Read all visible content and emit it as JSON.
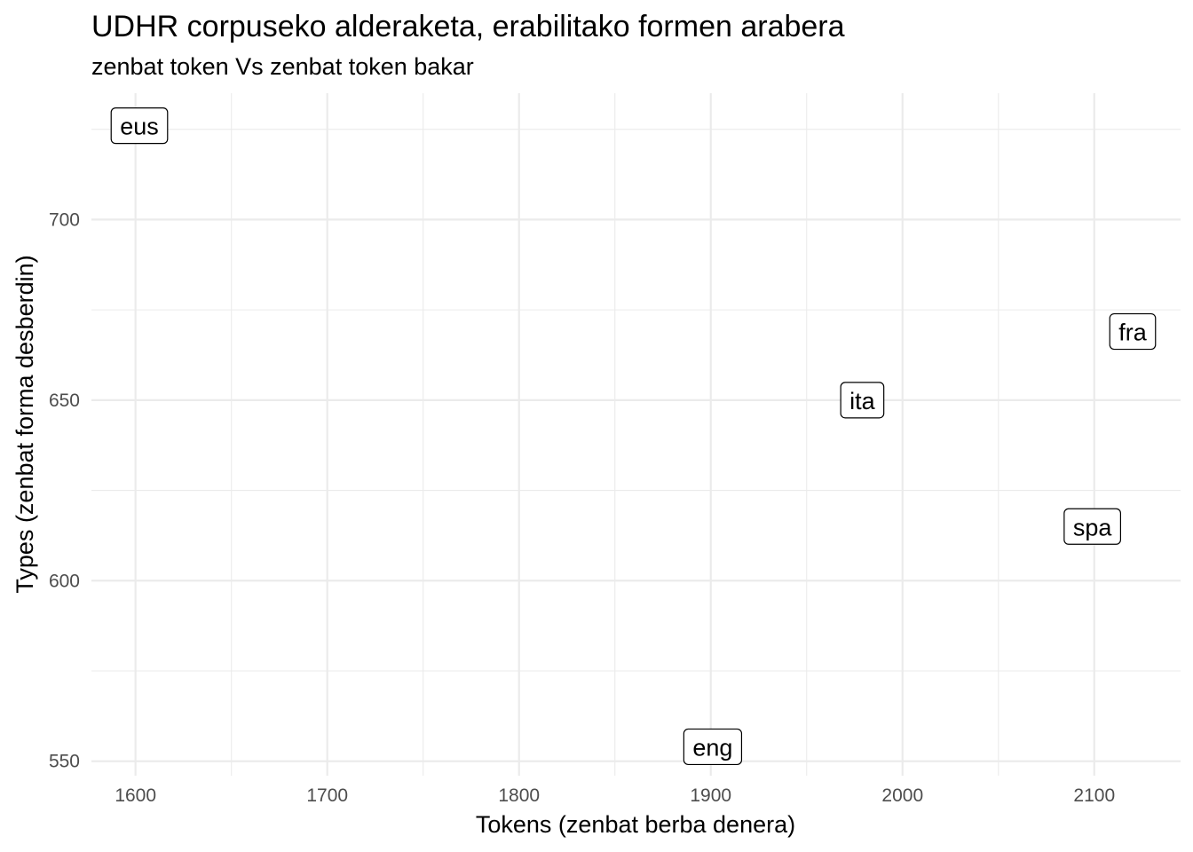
{
  "chart_data": {
    "type": "scatter",
    "title": "UDHR corpuseko alderaketa, erabilitako formen arabera",
    "subtitle": "zenbat token Vs zenbat token bakar",
    "xlabel": "Tokens (zenbat berba denera)",
    "ylabel": "Types (zenbat forma desberdin)",
    "xlim": [
      1577,
      2145
    ],
    "ylim": [
      546,
      735
    ],
    "x_ticks": [
      1600,
      1700,
      1800,
      1900,
      2000,
      2100
    ],
    "y_ticks": [
      550,
      600,
      650,
      700
    ],
    "x_tick_labels": [
      "1600",
      "1700",
      "1800",
      "1900",
      "2000",
      "2100"
    ],
    "y_tick_labels": [
      "550",
      "600",
      "650",
      "700"
    ],
    "grid": true,
    "legend": "none",
    "points": [
      {
        "label": "eus",
        "x": 1602,
        "y": 726
      },
      {
        "label": "fra",
        "x": 2120,
        "y": 669
      },
      {
        "label": "ita",
        "x": 1979,
        "y": 650
      },
      {
        "label": "spa",
        "x": 2099,
        "y": 615
      },
      {
        "label": "eng",
        "x": 1901,
        "y": 554
      }
    ]
  }
}
